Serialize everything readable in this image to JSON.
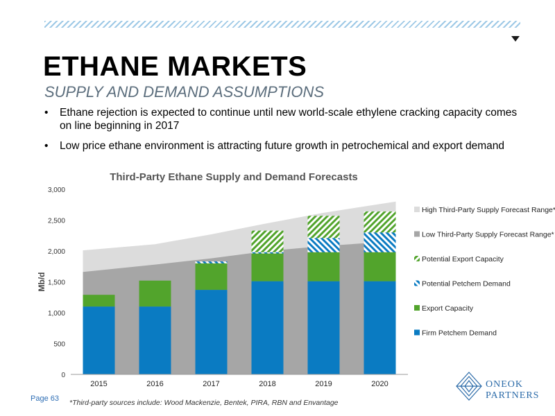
{
  "header": {
    "title": "ETHANE MARKETS",
    "subtitle": "SUPPLY AND DEMAND ASSUMPTIONS"
  },
  "bullets": [
    "Ethane rejection is expected to continue until new world-scale ethylene cracking capacity comes on line beginning in 2017",
    "Low price ethane environment is attracting future growth in petrochemical and export demand"
  ],
  "bullet_glyph": "•",
  "footer": {
    "page": "Page 63",
    "footnote": "*Third-party sources include: Wood Mackenzie, Bentek, PIRA, RBN and Envantage",
    "logo_line1": "ONEOK",
    "logo_line2": "PARTNERS"
  },
  "colors": {
    "firm": "#0a7bc2",
    "export": "#52a42c",
    "high_range": "#dcdcdc",
    "low_range": "#a6a6a6",
    "brand": "#2a6aa8"
  },
  "chart_data": {
    "type": "bar",
    "title": "Third-Party Ethane Supply and Demand Forecasts",
    "ylabel": "Mb/d",
    "xlabel": "",
    "ylim": [
      0,
      3000
    ],
    "yticks": [
      0,
      500,
      1000,
      1500,
      2000,
      2500,
      3000
    ],
    "ytick_labels": [
      "0",
      "500",
      "1,000",
      "1,500",
      "2,000",
      "2,500",
      "3,000"
    ],
    "categories": [
      "2015",
      "2016",
      "2017",
      "2018",
      "2019",
      "2020"
    ],
    "stacked": true,
    "series": [
      {
        "name": "Firm  Petchem Demand",
        "values": [
          1100,
          1100,
          1370,
          1510,
          1510,
          1510
        ]
      },
      {
        "name": "Export Capacity",
        "values": [
          190,
          420,
          430,
          450,
          470,
          470
        ]
      },
      {
        "name": "Potential Petchem Demand",
        "values": [
          0,
          0,
          30,
          20,
          230,
          320
        ]
      },
      {
        "name": "Potential Export Capacity",
        "values": [
          0,
          0,
          0,
          350,
          360,
          340
        ]
      }
    ],
    "area_series": [
      {
        "name": "High Third-Party Supply Forecast Range*",
        "values": [
          2010,
          2110,
          2270,
          2450,
          2620,
          2800
        ]
      },
      {
        "name": "Low Third-Party Supply Forecast Range*",
        "values": [
          1660,
          1780,
          1880,
          2000,
          2080,
          2160
        ]
      }
    ],
    "legend_position": "right",
    "legend_order": [
      "High Third-Party Supply Forecast Range*",
      "Low Third-Party Supply Forecast Range*",
      "Potential Export Capacity",
      "Potential Petchem Demand",
      "Export Capacity",
      "Firm  Petchem Demand"
    ],
    "grid": false
  }
}
